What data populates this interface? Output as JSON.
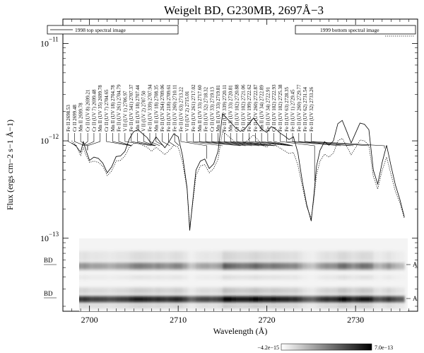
{
  "chart_data": {
    "type": "line",
    "title": "Weigelt BD, G230MB, 2697Å−3",
    "xlabel": "Wavelength (Å)",
    "ylabel": "Flux (ergs cm−2 s−1 Å−1)",
    "xlim": [
      2697,
      2737
    ],
    "x_ticks": [
      2700,
      2710,
      2720,
      2730
    ],
    "y_scale": "log",
    "ylim_log10": [
      -13.75,
      -10.75
    ],
    "y_tick_labels": [
      {
        "base": "10",
        "exp": "−11",
        "value": 1e-11
      },
      {
        "base": "10",
        "exp": "−12",
        "value": 1e-12
      },
      {
        "base": "10",
        "exp": "−13",
        "value": 1e-13
      }
    ],
    "legend": {
      "placement": "top",
      "entries": [
        "1998 top spectral image",
        "1999 bottom spectral image"
      ]
    },
    "series": [
      {
        "name": "1998 top spectral image",
        "style": "solid",
        "color": "#000000",
        "x": [
          2698.0,
          2698.5,
          2699.0,
          2699.3,
          2699.6,
          2700.0,
          2700.5,
          2701.0,
          2701.5,
          2702.0,
          2702.5,
          2703.0,
          2703.5,
          2704.0,
          2704.5,
          2705.0,
          2705.5,
          2706.0,
          2706.5,
          2707.0,
          2707.5,
          2708.0,
          2708.5,
          2709.0,
          2709.5,
          2710.0,
          2710.5,
          2711.0,
          2711.3,
          2711.6,
          2712.0,
          2712.5,
          2713.0,
          2713.5,
          2714.0,
          2714.5,
          2715.0,
          2715.5,
          2716.0,
          2716.5,
          2717.0,
          2717.5,
          2718.0,
          2718.5,
          2719.0,
          2719.5,
          2720.0,
          2720.5,
          2721.0,
          2721.5,
          2722.0,
          2722.5,
          2723.0,
          2723.5,
          2724.0,
          2724.5,
          2725.0,
          2725.3,
          2725.6,
          2726.0,
          2726.5,
          2727.0,
          2727.5,
          2728.0,
          2728.5,
          2729.0,
          2729.5,
          2730.0,
          2730.5,
          2731.0,
          2731.5,
          2732.0,
          2732.5,
          2733.0,
          2733.5,
          2734.0,
          2734.5,
          2735.0,
          2735.5
        ],
        "y": [
          9.5e-13,
          8.8e-13,
          7.6e-13,
          9.8e-13,
          8e-13,
          6.3e-13,
          6.8e-13,
          6.6e-13,
          5.9e-13,
          4.7e-13,
          5.4e-13,
          6.9e-13,
          7e-13,
          7.8e-13,
          1.05e-12,
          1.25e-12,
          1.3e-12,
          1.18e-12,
          1.08e-12,
          9.2e-13,
          1.1e-12,
          9.6e-13,
          8.5e-13,
          9.9e-13,
          1.18e-12,
          1.1e-12,
          7e-13,
          3.3e-13,
          1.2e-13,
          2.2e-13,
          5e-13,
          6.2e-13,
          6.5e-13,
          5.2e-13,
          5.8e-13,
          7.8e-13,
          1.9e-12,
          1.7e-12,
          1.52e-12,
          1.35e-12,
          1.25e-12,
          1.32e-12,
          1.5e-12,
          1.72e-12,
          1.48e-12,
          1.3e-12,
          1.22e-12,
          1.4e-12,
          1.32e-12,
          1.2e-12,
          1.12e-12,
          1.03e-12,
          1.1e-12,
          7.5e-13,
          3.8e-13,
          2.2e-13,
          1.5e-13,
          2.8e-13,
          5.5e-13,
          8e-13,
          9.8e-13,
          9e-13,
          1e-12,
          1.5e-12,
          1.62e-12,
          1.25e-12,
          9.5e-13,
          1.2e-12,
          1.52e-12,
          1.48e-12,
          1.3e-12,
          5e-13,
          3.6e-13,
          6e-13,
          9e-13,
          5.5e-13,
          3.5e-13,
          2.5e-13,
          1.65e-13
        ]
      },
      {
        "name": "1999 bottom spectral image",
        "style": "dotted",
        "color": "#000000",
        "x": [
          2698.0,
          2698.5,
          2699.0,
          2699.3,
          2699.6,
          2700.0,
          2700.5,
          2701.0,
          2701.5,
          2702.0,
          2702.5,
          2703.0,
          2703.5,
          2704.0,
          2704.5,
          2705.0,
          2705.5,
          2706.0,
          2706.5,
          2707.0,
          2707.5,
          2708.0,
          2708.5,
          2709.0,
          2709.5,
          2710.0,
          2710.5,
          2711.0,
          2711.3,
          2711.6,
          2712.0,
          2712.5,
          2713.0,
          2713.5,
          2714.0,
          2714.5,
          2715.0,
          2715.5,
          2716.0,
          2716.5,
          2717.0,
          2717.5,
          2718.0,
          2718.5,
          2719.0,
          2719.5,
          2720.0,
          2720.5,
          2721.0,
          2721.5,
          2722.0,
          2722.5,
          2723.0,
          2723.5,
          2724.0,
          2724.5,
          2725.0,
          2725.3,
          2725.6,
          2726.0,
          2726.5,
          2727.0,
          2727.5,
          2728.0,
          2728.5,
          2729.0,
          2729.5,
          2730.0,
          2730.5,
          2731.0,
          2731.5,
          2732.0,
          2732.5,
          2733.0,
          2733.5,
          2734.0,
          2734.5,
          2735.0,
          2735.5
        ],
        "y": [
          1e-12,
          9e-13,
          7e-13,
          8.5e-13,
          7.2e-13,
          6e-13,
          6.2e-13,
          6e-13,
          5.5e-13,
          4.4e-13,
          4.9e-13,
          6.2e-13,
          6.3e-13,
          7e-13,
          8.6e-13,
          9.4e-13,
          9.6e-13,
          9e-13,
          8.6e-13,
          7.8e-13,
          8.6e-13,
          7.9e-13,
          7.2e-13,
          8e-13,
          9e-13,
          8.6e-13,
          6e-13,
          3.2e-13,
          1.3e-13,
          2.1e-13,
          4.4e-13,
          5.5e-13,
          5.7e-13,
          4.7e-13,
          5.2e-13,
          6.5e-13,
          1.25e-12,
          1.15e-12,
          1.05e-12,
          9.5e-13,
          9e-13,
          9.5e-13,
          1.05e-12,
          1.15e-12,
          1.02e-12,
          9e-13,
          8.6e-13,
          9.5e-13,
          9e-13,
          8.4e-13,
          7.9e-13,
          7.4e-13,
          7.6e-13,
          5.6e-13,
          3.4e-13,
          2.1e-13,
          1.6e-13,
          2.5e-13,
          4.5e-13,
          6.2e-13,
          7.3e-13,
          6.8e-13,
          7.5e-13,
          1e-12,
          1.06e-12,
          8.8e-13,
          7.2e-13,
          8.5e-13,
          1.02e-12,
          1e-12,
          9e-13,
          4.3e-13,
          3.2e-13,
          5e-13,
          6.8e-13,
          4.5e-13,
          3e-13,
          2.3e-13,
          1.6e-13
        ]
      }
    ],
    "line_ids": [
      {
        "label": "Fe II 2698.53",
        "wl": 2698.53,
        "x_at_top": 2697.6
      },
      {
        "label": "Cr II 2699.48",
        "wl": 2699.48,
        "x_at_top": 2698.3
      },
      {
        "label": "Mn II 2699.78",
        "wl": 2699.78,
        "x_at_top": 2699.0
      },
      {
        "label": "Cr II (UV 8) 2699.21",
        "wl": 2699.21,
        "x_at_top": 2699.8
      },
      {
        "label": "Cr II (UV 7) 2699.48",
        "wl": 2699.48,
        "x_at_top": 2700.5
      },
      {
        "label": "Mn II (UV 35) 2699.78",
        "wl": 2699.78,
        "x_at_top": 2701.2
      },
      {
        "label": "Cr II (UV 7) 2704.65",
        "wl": 2704.65,
        "x_at_top": 2701.9
      },
      {
        "label": "Mn II (UV 18) 2704.78",
        "wl": 2704.78,
        "x_at_top": 2702.6
      },
      {
        "label": "Fe II (UV 261) 2704.79",
        "wl": 2704.79,
        "x_at_top": 2703.3
      },
      {
        "label": "V II (UV 1) 2706.97",
        "wl": 2706.97,
        "x_at_top": 2704.0
      },
      {
        "label": "Fe II (UV 341) 2707.37",
        "wl": 2707.37,
        "x_at_top": 2704.7
      },
      {
        "label": "Mn II (UV 18) 2707.44",
        "wl": 2707.44,
        "x_at_top": 2705.4
      },
      {
        "label": "V II (UV 2) 2707.50",
        "wl": 2707.5,
        "x_at_top": 2706.1
      },
      {
        "label": "Fe II (UV 339) 2707.94",
        "wl": 2707.94,
        "x_at_top": 2706.8
      },
      {
        "label": "Mn II (UV 18) 2708.35",
        "wl": 2708.35,
        "x_at_top": 2707.5
      },
      {
        "label": "Fe II (UV 264) 2709.06",
        "wl": 2709.06,
        "x_at_top": 2708.2
      },
      {
        "label": "Fe II (UV 218) 2709.61",
        "wl": 2709.61,
        "x_at_top": 2708.9
      },
      {
        "label": "Fe II (UV 260) 2710.11",
        "wl": 2710.11,
        "x_at_top": 2709.6
      },
      {
        "label": "Fe II (UV 63) 2713.22",
        "wl": 2713.22,
        "x_at_top": 2710.3
      },
      {
        "label": "V II (UV 2) 2715.01",
        "wl": 2715.01,
        "x_at_top": 2711.0
      },
      {
        "label": "Fe II (UV 261) 2717.02",
        "wl": 2717.02,
        "x_at_top": 2711.7
      },
      {
        "label": "Mn II (UV 33) 2717.60",
        "wl": 2717.6,
        "x_at_top": 2712.4
      },
      {
        "label": "Fe II (UV 32) 2718.32",
        "wl": 2718.32,
        "x_at_top": 2713.1
      },
      {
        "label": "Cr II (UV 33) 2719.13",
        "wl": 2719.13,
        "x_at_top": 2713.8
      },
      {
        "label": "Mn II (UV 33) 2719.81",
        "wl": 2719.81,
        "x_at_top": 2714.5
      },
      {
        "label": "Fe II (UV 339) 2720.11",
        "wl": 2720.11,
        "x_at_top": 2715.2
      },
      {
        "label": "Mn II (UV 33) 2720.81",
        "wl": 2720.81,
        "x_at_top": 2715.9
      },
      {
        "label": "Cr II (UV 102) 2720.88",
        "wl": 2720.88,
        "x_at_top": 2716.6
      },
      {
        "label": "Cr II (UV 102) 2721.06",
        "wl": 2721.06,
        "x_at_top": 2717.3
      },
      {
        "label": "Fe II (UV 199) 2722.62",
        "wl": 2722.62,
        "x_at_top": 2718.0
      },
      {
        "label": "Fe II (UV 260) 2722.87",
        "wl": 2722.87,
        "x_at_top": 2718.7
      },
      {
        "label": "Mn II (UV 34) 2722.89",
        "wl": 2722.89,
        "x_at_top": 2719.4
      },
      {
        "label": "Fe II (UV 34) 2722.91",
        "wl": 2722.91,
        "x_at_top": 2720.1
      },
      {
        "label": "Cr II (UV 102) 2722.93",
        "wl": 2722.93,
        "x_at_top": 2720.8
      },
      {
        "label": "Fe II (UV 102) 2725.38",
        "wl": 2725.38,
        "x_at_top": 2721.5
      },
      {
        "label": "Fe II (UV 63) 2728.35",
        "wl": 2728.35,
        "x_at_top": 2722.2
      },
      {
        "label": "Fe II (UV 1) 2729.45",
        "wl": 2729.45,
        "x_at_top": 2722.9
      },
      {
        "label": "Fe II (UV 260) 2729.77",
        "wl": 2729.77,
        "x_at_top": 2723.6
      },
      {
        "label": "Fe II (UV 62) 2731.54",
        "wl": 2731.54,
        "x_at_top": 2724.3
      },
      {
        "label": "Fe II (UV 32) 2733.26",
        "wl": 2733.26,
        "x_at_top": 2725.0
      }
    ],
    "spectral_image_markers": {
      "left": [
        "BD",
        "BD"
      ],
      "right": [
        "A",
        "A"
      ]
    },
    "colorbar": {
      "min_label": "−4.2e−15",
      "max_label": "7.0e−13"
    }
  }
}
